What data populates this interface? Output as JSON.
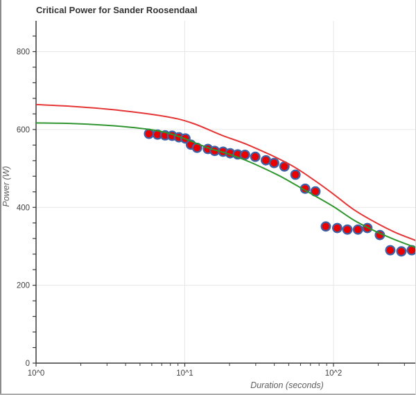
{
  "window": {
    "title": "Critical Power for Sander Roosendaal"
  },
  "chart_data": {
    "type": "scatter",
    "title": "Critical Power for Sander Roosendaal",
    "xlabel": "Duration (seconds)",
    "ylabel": "Power (W)",
    "x_scale": "log",
    "x_range_log10": [
      0,
      2.555
    ],
    "ylim": [
      0,
      879
    ],
    "grid": true,
    "legend": "none",
    "x_ticks": [
      {
        "log": 0,
        "label": "10^0"
      },
      {
        "log": 1,
        "label": "10^1"
      },
      {
        "log": 2,
        "label": "10^2"
      }
    ],
    "y_ticks": [
      {
        "value": 0,
        "label": "0"
      },
      {
        "value": 200,
        "label": "200"
      },
      {
        "value": 400,
        "label": "400"
      },
      {
        "value": 600,
        "label": "600"
      },
      {
        "value": 800,
        "label": "800"
      }
    ],
    "y_minor_tick_step": 40,
    "colors": {
      "red_curve": "#e53434",
      "green_curve": "#2f962f",
      "marker_fill": "#eb0000",
      "marker_stroke": "#3d62a6",
      "gridline": "#e7e7e7",
      "axis": "#383838"
    },
    "series": [
      {
        "name": "best-effort-points",
        "type": "scatter",
        "points": [
          [
            5.75,
            589
          ],
          [
            6.56,
            587
          ],
          [
            7.38,
            585
          ],
          [
            8.22,
            584
          ],
          [
            9.13,
            580
          ],
          [
            10.1,
            577
          ],
          [
            11.0,
            561
          ],
          [
            12.1,
            553
          ],
          [
            14.3,
            550
          ],
          [
            15.9,
            545
          ],
          [
            18.1,
            543
          ],
          [
            20.2,
            539
          ],
          [
            22.7,
            536
          ],
          [
            25.4,
            535
          ],
          [
            29.8,
            530
          ],
          [
            35.1,
            521
          ],
          [
            39.9,
            514
          ],
          [
            46.8,
            505
          ],
          [
            55.5,
            484
          ],
          [
            64.5,
            448
          ],
          [
            75.6,
            441
          ],
          [
            88.8,
            351
          ],
          [
            106,
            347
          ],
          [
            124,
            343
          ],
          [
            146,
            343
          ],
          [
            169,
            347
          ],
          [
            205,
            329
          ],
          [
            241,
            290
          ],
          [
            286,
            287
          ],
          [
            336,
            290
          ]
        ]
      },
      {
        "name": "green-model-curve",
        "type": "line",
        "points": [
          [
            1.0,
            617
          ],
          [
            1.86,
            615
          ],
          [
            3.74,
            608
          ],
          [
            6.75,
            596
          ],
          [
            9.73,
            578
          ],
          [
            14.3,
            553
          ],
          [
            19.8,
            537
          ],
          [
            27.2,
            517
          ],
          [
            41.8,
            484
          ],
          [
            51.6,
            465
          ],
          [
            71.6,
            434
          ],
          [
            100,
            402
          ],
          [
            136,
            368
          ],
          [
            188,
            340
          ],
          [
            259,
            317
          ],
          [
            357,
            297
          ]
        ]
      },
      {
        "name": "red-model-curve",
        "type": "line",
        "points": [
          [
            1.0,
            664
          ],
          [
            1.81,
            659
          ],
          [
            3.67,
            649
          ],
          [
            7.54,
            633
          ],
          [
            11.3,
            616
          ],
          [
            17.8,
            585
          ],
          [
            27.2,
            559
          ],
          [
            50.4,
            511
          ],
          [
            74.1,
            470
          ],
          [
            100,
            434
          ],
          [
            136,
            395
          ],
          [
            188,
            363
          ],
          [
            259,
            336
          ],
          [
            357,
            315
          ]
        ]
      }
    ]
  }
}
